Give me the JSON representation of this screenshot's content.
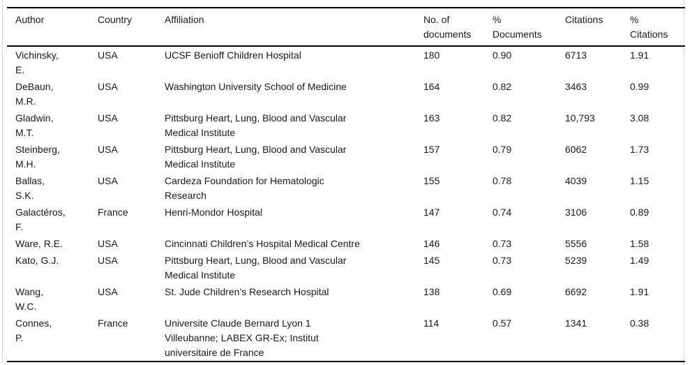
{
  "table": {
    "columns": [
      {
        "key": "author",
        "label": "Author"
      },
      {
        "key": "country",
        "label": "Country"
      },
      {
        "key": "affiliation",
        "label": "Affiliation"
      },
      {
        "key": "documents",
        "label": "No. of\ndocuments"
      },
      {
        "key": "pct_documents",
        "label": "%\nDocuments"
      },
      {
        "key": "citations",
        "label": "Citations"
      },
      {
        "key": "pct_citations",
        "label": "%\nCitations"
      }
    ],
    "rows": [
      {
        "author": "Vichinsky,\nE.",
        "country": "USA",
        "affiliation": "UCSF Benioff Children Hospital",
        "documents": "180",
        "pct_documents": "0.90",
        "citations": "6713",
        "pct_citations": "1.91"
      },
      {
        "author": "DeBaun,\nM.R.",
        "country": "USA",
        "affiliation": "Washington University School of Medicine",
        "documents": "164",
        "pct_documents": "0.82",
        "citations": "3463",
        "pct_citations": "0.99"
      },
      {
        "author": "Gladwin,\nM.T.",
        "country": "USA",
        "affiliation": "Pittsburg Heart, Lung, Blood and Vascular\nMedical Institute",
        "documents": "163",
        "pct_documents": "0.82",
        "citations": "10,793",
        "pct_citations": "3.08"
      },
      {
        "author": "Steinberg,\nM.H.",
        "country": "USA",
        "affiliation": "Pittsburg Heart, Lung, Blood and Vascular\nMedical Institute",
        "documents": "157",
        "pct_documents": "0.79",
        "citations": "6062",
        "pct_citations": "1.73"
      },
      {
        "author": "Ballas,\nS.K.",
        "country": "USA",
        "affiliation": "Cardeza Foundation for Hematologic\nResearch",
        "documents": "155",
        "pct_documents": "0.78",
        "citations": "4039",
        "pct_citations": "1.15"
      },
      {
        "author": "Galactéros,\nF.",
        "country": "France",
        "affiliation": "Henri-Mondor Hospital",
        "documents": "147",
        "pct_documents": "0.74",
        "citations": "3106",
        "pct_citations": "0.89"
      },
      {
        "author": "Ware, R.E.",
        "country": "USA",
        "affiliation": "Cincinnati Children’s Hospital Medical Centre",
        "documents": "146",
        "pct_documents": "0.73",
        "citations": "5556",
        "pct_citations": "1.58"
      },
      {
        "author": "Kato, G.J.",
        "country": "USA",
        "affiliation": "Pittsburg Heart, Lung, Blood and Vascular\nMedical Institute",
        "documents": "145",
        "pct_documents": "0.73",
        "citations": "5239",
        "pct_citations": "1.49"
      },
      {
        "author": "Wang,\nW.C.",
        "country": "USA",
        "affiliation": "St. Jude Children’s Research Hospital",
        "documents": "138",
        "pct_documents": "0.69",
        "citations": "6692",
        "pct_citations": "1.91"
      },
      {
        "author": "Connes,\nP.",
        "country": "France",
        "affiliation": "Universite Claude Bernard Lyon 1\nVilleubanne; LABEX GR-Ex; Institut\nuniversitaire de France",
        "documents": "114",
        "pct_documents": "0.57",
        "citations": "1341",
        "pct_citations": "0.38"
      }
    ]
  },
  "colors": {
    "text": "#1a1a1a",
    "rule": "#000000",
    "page_edge": "#dcdcdc",
    "background": "#ffffff"
  }
}
